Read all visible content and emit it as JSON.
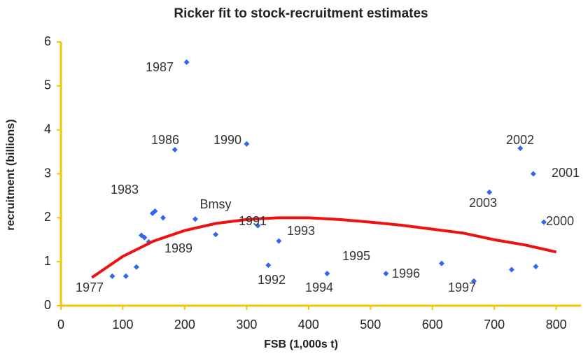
{
  "chart_data": {
    "type": "scatter",
    "title": "Ricker fit to stock-recruitment estimates",
    "x_label": "FSB (1,000s t)",
    "y_label": "recruitment (billions)",
    "xlim": [
      0,
      840
    ],
    "ylim": [
      0,
      6
    ],
    "xticks": [
      0,
      100,
      200,
      300,
      400,
      500,
      600,
      700,
      800
    ],
    "yticks": [
      0,
      1,
      2,
      3,
      4,
      5,
      6
    ],
    "axis_color": "#f5c400",
    "series": [
      {
        "type": "scatter",
        "color": "#3366ee",
        "x": [
          83,
          105,
          122,
          130,
          135,
          142,
          148,
          152,
          165,
          184,
          203,
          217,
          250,
          300,
          318,
          335,
          352,
          430,
          525,
          615,
          667,
          692,
          728,
          742,
          763,
          767,
          780
        ],
        "values": [
          0.67,
          0.67,
          0.88,
          1.6,
          1.55,
          1.45,
          2.1,
          2.15,
          2.0,
          3.55,
          5.54,
          1.97,
          1.62,
          3.68,
          1.82,
          0.92,
          1.47,
          0.73,
          0.73,
          0.96,
          0.56,
          2.58,
          0.82,
          3.58,
          3.0,
          0.89,
          1.9
        ]
      },
      {
        "type": "line",
        "color": "#ee1111",
        "x": [
          50,
          100,
          150,
          200,
          250,
          300,
          350,
          400,
          450,
          500,
          550,
          600,
          650,
          700,
          750,
          800
        ],
        "values": [
          0.64,
          1.12,
          1.47,
          1.71,
          1.87,
          1.96,
          2.0,
          2.0,
          1.96,
          1.9,
          1.83,
          1.74,
          1.65,
          1.5,
          1.38,
          1.22
        ]
      }
    ],
    "annotations": [
      "1987",
      "1986",
      "1990",
      "1983",
      "Bmsy",
      "1991",
      "1993",
      "1989",
      "1995",
      "1996",
      "1992",
      "1994",
      "1997",
      "1977",
      "2002",
      "2001",
      "2003",
      "2000"
    ]
  }
}
